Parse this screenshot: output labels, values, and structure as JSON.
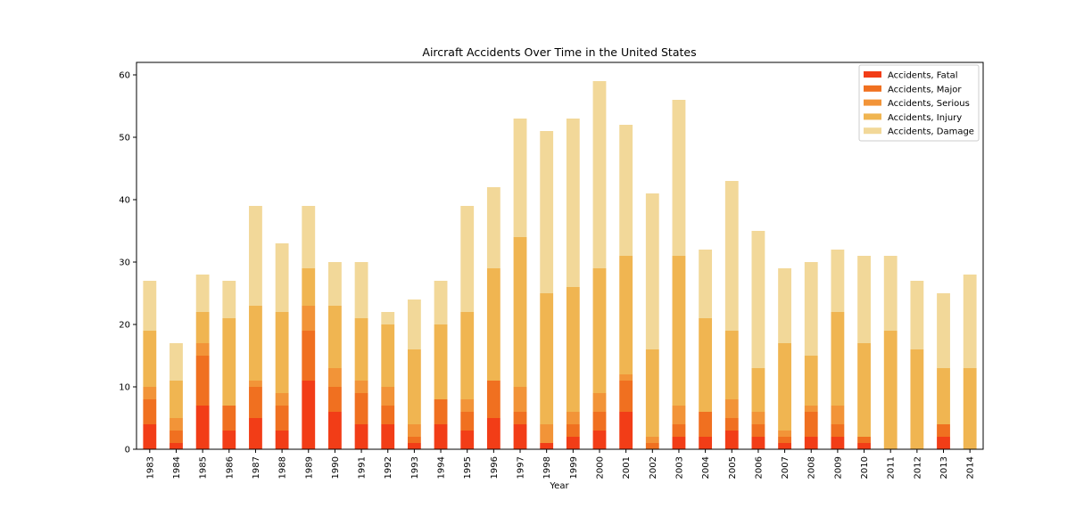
{
  "chart_data": {
    "type": "bar",
    "stacked": true,
    "title": "Aircraft Accidents Over Time in the United States",
    "xlabel": "Year",
    "ylabel": "",
    "ylim": [
      0,
      62
    ],
    "yticks": [
      0,
      10,
      20,
      30,
      40,
      50,
      60
    ],
    "grid": false,
    "legend_position": "top-right",
    "categories": [
      "1983",
      "1984",
      "1985",
      "1986",
      "1987",
      "1988",
      "1989",
      "1990",
      "1991",
      "1992",
      "1993",
      "1994",
      "1995",
      "1996",
      "1997",
      "1998",
      "1999",
      "2000",
      "2001",
      "2002",
      "2003",
      "2004",
      "2005",
      "2006",
      "2007",
      "2008",
      "2009",
      "2010",
      "2011",
      "2012",
      "2013",
      "2014"
    ],
    "series": [
      {
        "name": "Accidents, Fatal",
        "color": "#f23d17",
        "values": [
          4,
          1,
          7,
          3,
          5,
          3,
          11,
          6,
          4,
          4,
          1,
          4,
          3,
          5,
          4,
          1,
          2,
          3,
          6,
          0,
          2,
          2,
          3,
          2,
          1,
          2,
          2,
          1,
          0,
          0,
          2,
          0
        ]
      },
      {
        "name": "Accidents, Major",
        "color": "#f07020",
        "values": [
          4,
          2,
          8,
          4,
          5,
          4,
          8,
          4,
          5,
          3,
          1,
          4,
          3,
          6,
          2,
          0,
          2,
          3,
          5,
          1,
          2,
          4,
          2,
          2,
          1,
          4,
          2,
          1,
          0,
          0,
          2,
          0
        ]
      },
      {
        "name": "Accidents, Serious",
        "color": "#f29438",
        "values": [
          2,
          2,
          2,
          0,
          1,
          2,
          4,
          3,
          2,
          3,
          2,
          0,
          2,
          0,
          4,
          3,
          2,
          3,
          1,
          1,
          3,
          0,
          3,
          2,
          1,
          1,
          3,
          0,
          0,
          0,
          0,
          0
        ]
      },
      {
        "name": "Accidents, Injury",
        "color": "#f0b551",
        "values": [
          9,
          6,
          5,
          14,
          12,
          13,
          6,
          10,
          10,
          10,
          12,
          12,
          14,
          18,
          24,
          21,
          20,
          20,
          19,
          14,
          24,
          15,
          11,
          7,
          14,
          8,
          15,
          15,
          19,
          16,
          9,
          13
        ]
      },
      {
        "name": "Accidents, Damage",
        "color": "#f2d899",
        "values": [
          8,
          6,
          6,
          6,
          16,
          11,
          10,
          7,
          9,
          2,
          8,
          7,
          17,
          13,
          19,
          26,
          27,
          30,
          21,
          25,
          25,
          11,
          24,
          22,
          12,
          15,
          10,
          14,
          12,
          11,
          12,
          15
        ]
      }
    ]
  }
}
